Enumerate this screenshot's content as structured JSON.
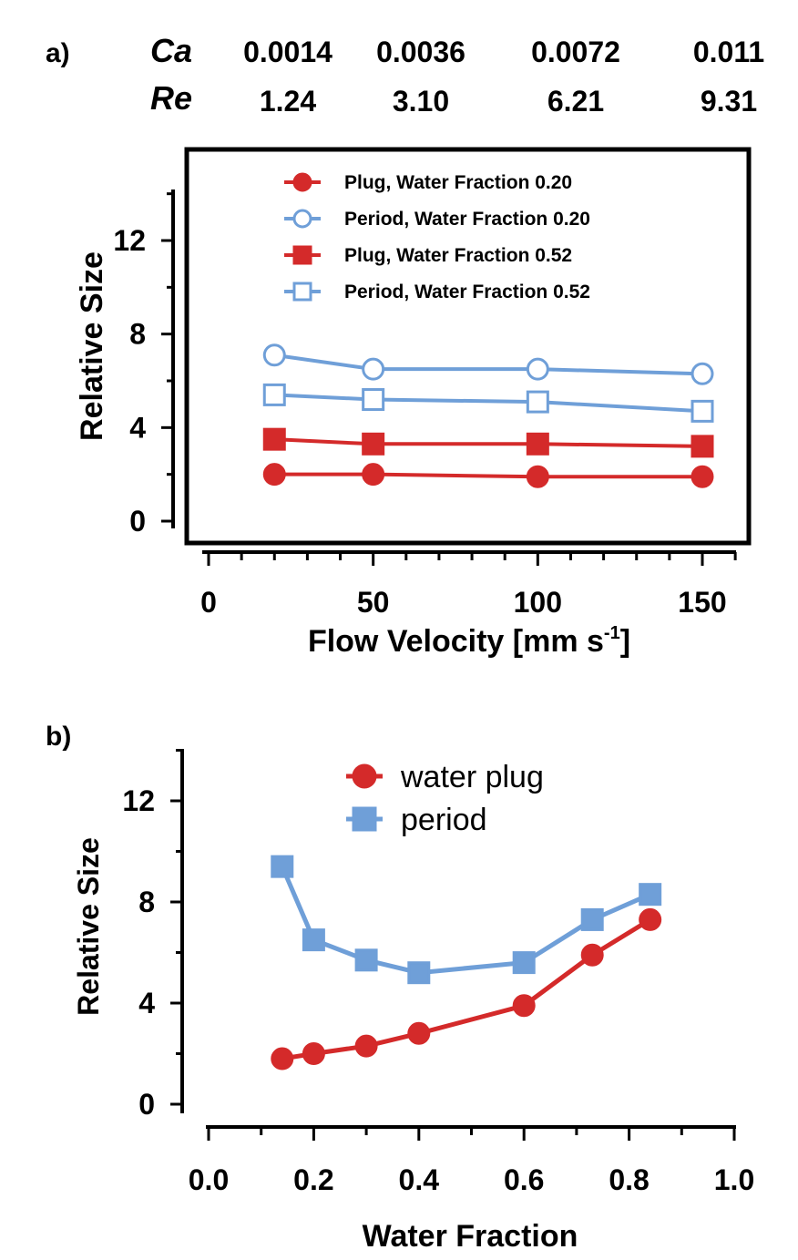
{
  "header": {
    "ca_label": "Ca",
    "re_label": "Re",
    "ca_values": [
      "0.0014",
      "0.0036",
      "0.0072",
      "0.011"
    ],
    "re_values": [
      "1.24",
      "3.10",
      "6.21",
      "9.31"
    ]
  },
  "colors": {
    "red": "#d42a2a",
    "blue": "#6f9fd8",
    "axis": "#000000"
  },
  "chart_data": [
    {
      "panel": "a)",
      "type": "line",
      "xlabel": "Flow Velocity [mm s",
      "xlabel_superscript": "-1",
      "xlabel_close": "]",
      "ylabel": "Relative Size",
      "xlim": [
        -5,
        165
      ],
      "ylim": [
        -1,
        15
      ],
      "xticks": [
        0,
        50,
        100,
        150
      ],
      "yticks": [
        0,
        4,
        8,
        12
      ],
      "framed": true,
      "legend_position": "top",
      "series": [
        {
          "name": "Plug, Water Fraction 0.20",
          "color": "#d42a2a",
          "marker": "circle",
          "filled": true,
          "x": [
            20,
            50,
            100,
            150
          ],
          "y": [
            2.0,
            2.0,
            1.9,
            1.9
          ]
        },
        {
          "name": "Period, Water Fraction 0.20",
          "color": "#6f9fd8",
          "marker": "circle",
          "filled": false,
          "x": [
            20,
            50,
            100,
            150
          ],
          "y": [
            7.1,
            6.5,
            6.5,
            6.3
          ]
        },
        {
          "name": "Plug, Water Fraction 0.52",
          "color": "#d42a2a",
          "marker": "square",
          "filled": true,
          "x": [
            20,
            50,
            100,
            150
          ],
          "y": [
            3.5,
            3.3,
            3.3,
            3.2
          ]
        },
        {
          "name": "Period, Water Fraction 0.52",
          "color": "#6f9fd8",
          "marker": "square",
          "filled": false,
          "x": [
            20,
            50,
            100,
            150
          ],
          "y": [
            5.4,
            5.2,
            5.1,
            4.7
          ]
        }
      ]
    },
    {
      "panel": "b)",
      "type": "line",
      "xlabel": "Water Fraction",
      "ylabel": "Relative Size",
      "xlim": [
        0,
        1.0
      ],
      "ylim": [
        -1,
        15
      ],
      "xticks": [
        0.0,
        0.2,
        0.4,
        0.6,
        0.8,
        1.0
      ],
      "xtick_labels": [
        "0.0",
        "0.2",
        "0.4",
        "0.6",
        "0.8",
        "1.0"
      ],
      "yticks": [
        0,
        4,
        8,
        12
      ],
      "framed": false,
      "legend_position": "top-center",
      "series": [
        {
          "name": "water plug",
          "color": "#d42a2a",
          "marker": "circle",
          "filled": true,
          "x": [
            0.14,
            0.2,
            0.3,
            0.4,
            0.6,
            0.73,
            0.84
          ],
          "y": [
            1.8,
            2.0,
            2.3,
            2.8,
            3.9,
            5.9,
            7.3
          ]
        },
        {
          "name": "period",
          "color": "#6f9fd8",
          "marker": "square",
          "filled": true,
          "x": [
            0.14,
            0.2,
            0.3,
            0.4,
            0.6,
            0.73,
            0.84
          ],
          "y": [
            9.4,
            6.5,
            5.7,
            5.2,
            5.6,
            7.3,
            8.3
          ]
        }
      ]
    }
  ]
}
